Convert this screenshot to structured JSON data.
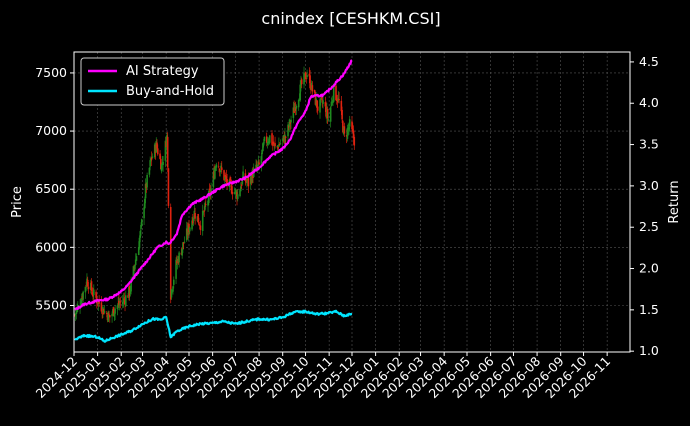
{
  "chart_data": {
    "type": "line",
    "title": "cnindex [CESHKM.CSI]",
    "ylabel": "Price",
    "y2label": "Return",
    "ylim": [
      5100,
      7680
    ],
    "y2lim": [
      0.99,
      4.62
    ],
    "yticks": [
      5500,
      6000,
      6500,
      7000,
      7500
    ],
    "y2ticks": [
      1.0,
      1.5,
      2.0,
      2.5,
      3.0,
      3.5,
      4.0,
      4.5
    ],
    "y2tick_labels": [
      "1.0",
      "1.5",
      "2.0",
      "2.5",
      "3.0",
      "3.5",
      "4.0",
      "4.5"
    ],
    "xlim": [
      "2024-12-01",
      "2026-12-01"
    ],
    "xticks": [
      "2024-12",
      "2025-01",
      "2025-02",
      "2025-03",
      "2025-04",
      "2025-05",
      "2025-06",
      "2025-07",
      "2025-08",
      "2025-09",
      "2025-10",
      "2025-11",
      "2025-12",
      "2026-01",
      "2026-02",
      "2026-03",
      "2026-04",
      "2026-05",
      "2026-06",
      "2026-07",
      "2026-08",
      "2026-09",
      "2026-10",
      "2026-11"
    ],
    "grid": true,
    "legend_position": "top-left",
    "candlestick": {
      "up_color": "#1f8a1f",
      "down_color": "#e0220f",
      "note": "daily OHLC candlesticks on left (Price) axis",
      "close_path": [
        [
          "2024-12-02",
          5420
        ],
        [
          "2024-12-10",
          5550
        ],
        [
          "2024-12-18",
          5720
        ],
        [
          "2024-12-26",
          5600
        ],
        [
          "2025-01-03",
          5520
        ],
        [
          "2025-01-10",
          5450
        ],
        [
          "2025-01-17",
          5400
        ],
        [
          "2025-01-24",
          5480
        ],
        [
          "2025-02-05",
          5550
        ],
        [
          "2025-02-12",
          5620
        ],
        [
          "2025-02-20",
          5900
        ],
        [
          "2025-02-27",
          6150
        ],
        [
          "2025-03-05",
          6500
        ],
        [
          "2025-03-12",
          6750
        ],
        [
          "2025-03-19",
          6880
        ],
        [
          "2025-03-26",
          6700
        ],
        [
          "2025-04-02",
          6950
        ],
        [
          "2025-04-07",
          5600
        ],
        [
          "2025-04-14",
          5850
        ],
        [
          "2025-04-22",
          6000
        ],
        [
          "2025-04-30",
          6150
        ],
        [
          "2025-05-08",
          6300
        ],
        [
          "2025-05-16",
          6200
        ],
        [
          "2025-05-23",
          6350
        ],
        [
          "2025-05-30",
          6500
        ],
        [
          "2025-06-06",
          6750
        ],
        [
          "2025-06-13",
          6650
        ],
        [
          "2025-06-20",
          6550
        ],
        [
          "2025-06-27",
          6500
        ],
        [
          "2025-07-04",
          6450
        ],
        [
          "2025-07-11",
          6600
        ],
        [
          "2025-07-18",
          6550
        ],
        [
          "2025-07-25",
          6650
        ],
        [
          "2025-08-01",
          6700
        ],
        [
          "2025-08-08",
          6900
        ],
        [
          "2025-08-15",
          6950
        ],
        [
          "2025-08-22",
          6850
        ],
        [
          "2025-08-29",
          6900
        ],
        [
          "2025-09-05",
          6950
        ],
        [
          "2025-09-12",
          7100
        ],
        [
          "2025-09-19",
          7250
        ],
        [
          "2025-09-26",
          7400
        ],
        [
          "2025-10-03",
          7500
        ],
        [
          "2025-10-10",
          7350
        ],
        [
          "2025-10-17",
          7200
        ],
        [
          "2025-10-24",
          7250
        ],
        [
          "2025-10-31",
          7100
        ],
        [
          "2025-11-07",
          7350
        ],
        [
          "2025-11-14",
          7250
        ],
        [
          "2025-11-21",
          6950
        ],
        [
          "2025-11-28",
          7050
        ],
        [
          "2025-12-05",
          6900
        ]
      ]
    },
    "series": [
      {
        "name": "AI Strategy",
        "color": "#ff00ff",
        "axis": "right",
        "points": [
          [
            "2024-12-02",
            1.5
          ],
          [
            "2024-12-15",
            1.57
          ],
          [
            "2025-01-01",
            1.61
          ],
          [
            "2025-01-15",
            1.63
          ],
          [
            "2025-02-01",
            1.72
          ],
          [
            "2025-02-10",
            1.8
          ],
          [
            "2025-02-25",
            1.98
          ],
          [
            "2025-03-10",
            2.13
          ],
          [
            "2025-03-20",
            2.25
          ],
          [
            "2025-04-01",
            2.32
          ],
          [
            "2025-04-05",
            2.3
          ],
          [
            "2025-04-15",
            2.42
          ],
          [
            "2025-04-22",
            2.65
          ],
          [
            "2025-05-05",
            2.78
          ],
          [
            "2025-05-20",
            2.85
          ],
          [
            "2025-06-01",
            2.92
          ],
          [
            "2025-06-15",
            3.0
          ],
          [
            "2025-07-01",
            3.05
          ],
          [
            "2025-07-15",
            3.1
          ],
          [
            "2025-08-01",
            3.22
          ],
          [
            "2025-08-15",
            3.35
          ],
          [
            "2025-09-01",
            3.45
          ],
          [
            "2025-09-10",
            3.55
          ],
          [
            "2025-09-20",
            3.75
          ],
          [
            "2025-10-01",
            3.9
          ],
          [
            "2025-10-08",
            4.08
          ],
          [
            "2025-10-25",
            4.1
          ],
          [
            "2025-11-05",
            4.2
          ],
          [
            "2025-11-20",
            4.35
          ],
          [
            "2025-12-01",
            4.52
          ]
        ]
      },
      {
        "name": "Buy-and-Hold",
        "color": "#00e5ff",
        "axis": "right",
        "points": [
          [
            "2024-12-02",
            1.14
          ],
          [
            "2024-12-15",
            1.19
          ],
          [
            "2025-01-01",
            1.17
          ],
          [
            "2025-01-10",
            1.12
          ],
          [
            "2025-01-20",
            1.16
          ],
          [
            "2025-02-01",
            1.2
          ],
          [
            "2025-02-15",
            1.25
          ],
          [
            "2025-03-01",
            1.33
          ],
          [
            "2025-03-15",
            1.39
          ],
          [
            "2025-03-25",
            1.38
          ],
          [
            "2025-04-01",
            1.41
          ],
          [
            "2025-04-07",
            1.17
          ],
          [
            "2025-04-15",
            1.24
          ],
          [
            "2025-05-01",
            1.3
          ],
          [
            "2025-05-15",
            1.33
          ],
          [
            "2025-06-01",
            1.34
          ],
          [
            "2025-06-15",
            1.36
          ],
          [
            "2025-07-01",
            1.33
          ],
          [
            "2025-07-15",
            1.36
          ],
          [
            "2025-08-01",
            1.39
          ],
          [
            "2025-08-15",
            1.38
          ],
          [
            "2025-09-01",
            1.41
          ],
          [
            "2025-09-15",
            1.47
          ],
          [
            "2025-10-01",
            1.48
          ],
          [
            "2025-10-15",
            1.45
          ],
          [
            "2025-10-31",
            1.46
          ],
          [
            "2025-11-10",
            1.48
          ],
          [
            "2025-11-20",
            1.43
          ],
          [
            "2025-12-01",
            1.45
          ]
        ]
      }
    ]
  }
}
